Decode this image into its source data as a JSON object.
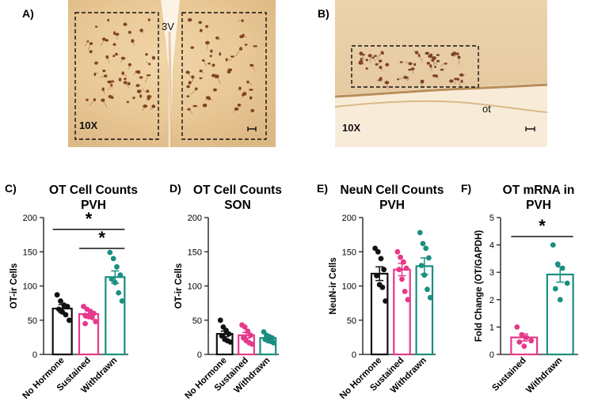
{
  "panels_micro": [
    {
      "label": "A)",
      "magnification": "10X",
      "marker": "3V"
    },
    {
      "label": "B)",
      "magnification": "10X",
      "marker": "ot"
    }
  ],
  "chart_data": [
    {
      "id": "C",
      "label": "C)",
      "type": "bar",
      "title_line1": "OT Cell Counts",
      "title_line2": "PVH",
      "ylabel": "OT-ir Cells",
      "ylim": [
        0,
        200
      ],
      "yticks": [
        "0",
        "50",
        "100",
        "150",
        "200"
      ],
      "categories": [
        "No Hormone",
        "Sustained",
        "Withdrawn"
      ],
      "values": [
        67,
        59,
        113
      ],
      "sem": [
        6,
        6,
        9
      ],
      "points": [
        [
          87,
          78,
          72,
          70,
          66,
          62,
          58,
          50
        ],
        [
          70,
          66,
          63,
          60,
          57,
          55,
          54,
          48,
          45
        ],
        [
          149,
          140,
          128,
          116,
          110,
          105,
          90,
          78
        ]
      ],
      "colors": [
        "#111111",
        "#e8388a",
        "#1a8f80"
      ],
      "significance": [
        {
          "from": 0,
          "to": 2,
          "symbol": "*"
        },
        {
          "from": 1,
          "to": 2,
          "symbol": "*"
        }
      ]
    },
    {
      "id": "D",
      "label": "D)",
      "type": "bar",
      "title_line1": "OT Cell Counts",
      "title_line2": "SON",
      "ylabel": "OT-ir Cells",
      "ylim": [
        0,
        200
      ],
      "yticks": [
        "0",
        "50",
        "100",
        "150",
        "200"
      ],
      "categories": [
        "No Hormone",
        "Sustained",
        "Withdrawn"
      ],
      "values": [
        30,
        28,
        24
      ],
      "sem": [
        4,
        4,
        2
      ],
      "points": [
        [
          50,
          40,
          35,
          30,
          27,
          22,
          20,
          18
        ],
        [
          43,
          40,
          34,
          28,
          24,
          20,
          17,
          15
        ],
        [
          33,
          28,
          26,
          24,
          22,
          20,
          19,
          17
        ]
      ],
      "colors": [
        "#111111",
        "#e8388a",
        "#1a8f80"
      ],
      "significance": []
    },
    {
      "id": "E",
      "label": "E)",
      "type": "bar",
      "title_line1": "NeuN Cell Counts",
      "title_line2": "PVH",
      "ylabel": "NeuN-ir Cells",
      "ylim": [
        0,
        200
      ],
      "yticks": [
        "0",
        "50",
        "100",
        "150",
        "200"
      ],
      "categories": [
        "No Hormone",
        "Sustained",
        "Withdrawn"
      ],
      "values": [
        118,
        124,
        129
      ],
      "sem": [
        10,
        9,
        12
      ],
      "points": [
        [
          155,
          150,
          140,
          124,
          115,
          102,
          98,
          78
        ],
        [
          150,
          142,
          135,
          126,
          124,
          110,
          92,
          80
        ],
        [
          178,
          162,
          155,
          141,
          130,
          116,
          95,
          83
        ]
      ],
      "colors": [
        "#111111",
        "#e8388a",
        "#1a8f80"
      ],
      "significance": []
    },
    {
      "id": "F",
      "label": "F)",
      "type": "bar",
      "title_line1": "OT mRNA in",
      "title_line2": "PVH",
      "ylabel": "Fold Change (OT/GAPDH)",
      "ylim": [
        0,
        5
      ],
      "yticks": [
        "0",
        "1",
        "2",
        "3",
        "4",
        "5"
      ],
      "categories": [
        "Sustained",
        "Withdrawn"
      ],
      "values": [
        0.62,
        2.92
      ],
      "sem": [
        0.13,
        0.28
      ],
      "points": [
        [
          1.0,
          0.72,
          0.62,
          0.5,
          0.45,
          0.3
        ],
        [
          4.0,
          3.3,
          3.15,
          2.6,
          2.4,
          2.0
        ]
      ],
      "colors": [
        "#e8388a",
        "#1a8f80"
      ],
      "significance": [
        {
          "from": 0,
          "to": 1,
          "symbol": "*"
        }
      ]
    }
  ]
}
